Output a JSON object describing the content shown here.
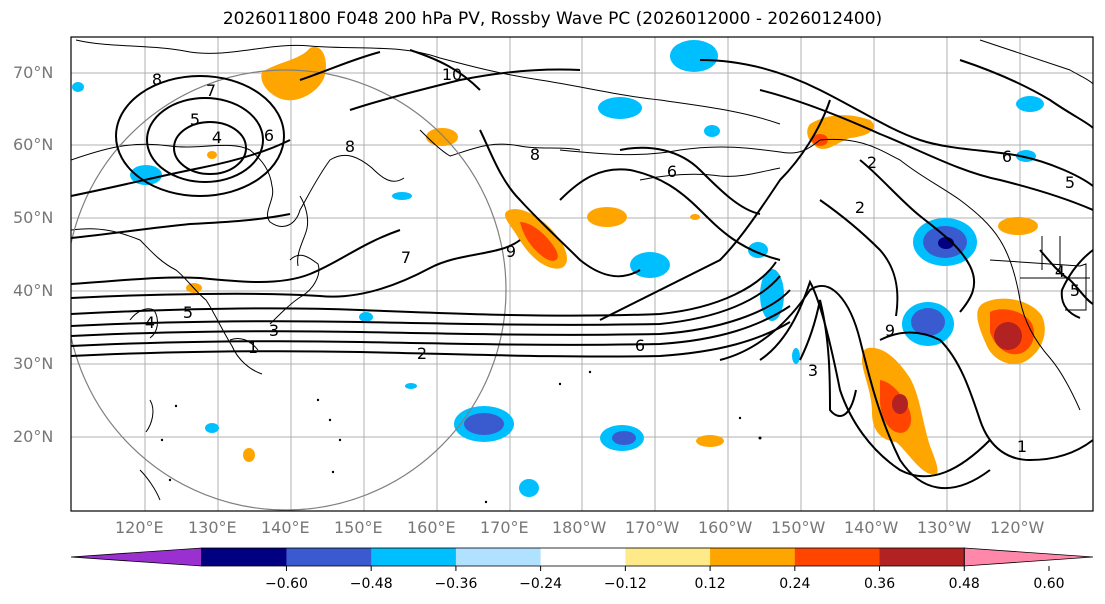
{
  "title": "2026011800 F048 200 hPa PV, Rossby Wave PC (2026012000 - 2026012400)",
  "lat_labels": [
    "70°N",
    "60°N",
    "50°N",
    "40°N",
    "30°N",
    "20°N"
  ],
  "lon_labels": [
    "120°E",
    "130°E",
    "140°E",
    "150°E",
    "160°E",
    "170°E",
    "180°W",
    "170°W",
    "160°W",
    "150°W",
    "140°W",
    "130°W",
    "120°W"
  ],
  "colorbar": {
    "tick_labels": [
      "−0.60",
      "−0.48",
      "−0.36",
      "−0.24",
      "−0.12",
      "0.12",
      "0.24",
      "0.36",
      "0.48",
      "0.60"
    ],
    "colors": [
      "#9b30d0",
      "#000080",
      "#3a5bd0",
      "#00bfff",
      "#b0e2ff",
      "#ffffff",
      "#ffea8a",
      "#ffa500",
      "#ff4500",
      "#b22222",
      "#ff88aa"
    ]
  },
  "contour_labels": [
    "8",
    "7",
    "5",
    "4",
    "6",
    "10",
    "8",
    "8",
    "7",
    "9",
    "6",
    "2",
    "2",
    "6",
    "5",
    "4",
    "5",
    "4",
    "3",
    "1",
    "2",
    "6",
    "3",
    "9",
    "1",
    "5"
  ],
  "colors": {
    "neg_dark": "#000080",
    "neg_mid": "#3a5bd0",
    "neg_light": "#00bfff",
    "pos_light": "#ffa500",
    "pos_mid": "#ff4500",
    "pos_dark": "#b22222",
    "grid": "#b0b0b0",
    "circle": "#808080"
  }
}
